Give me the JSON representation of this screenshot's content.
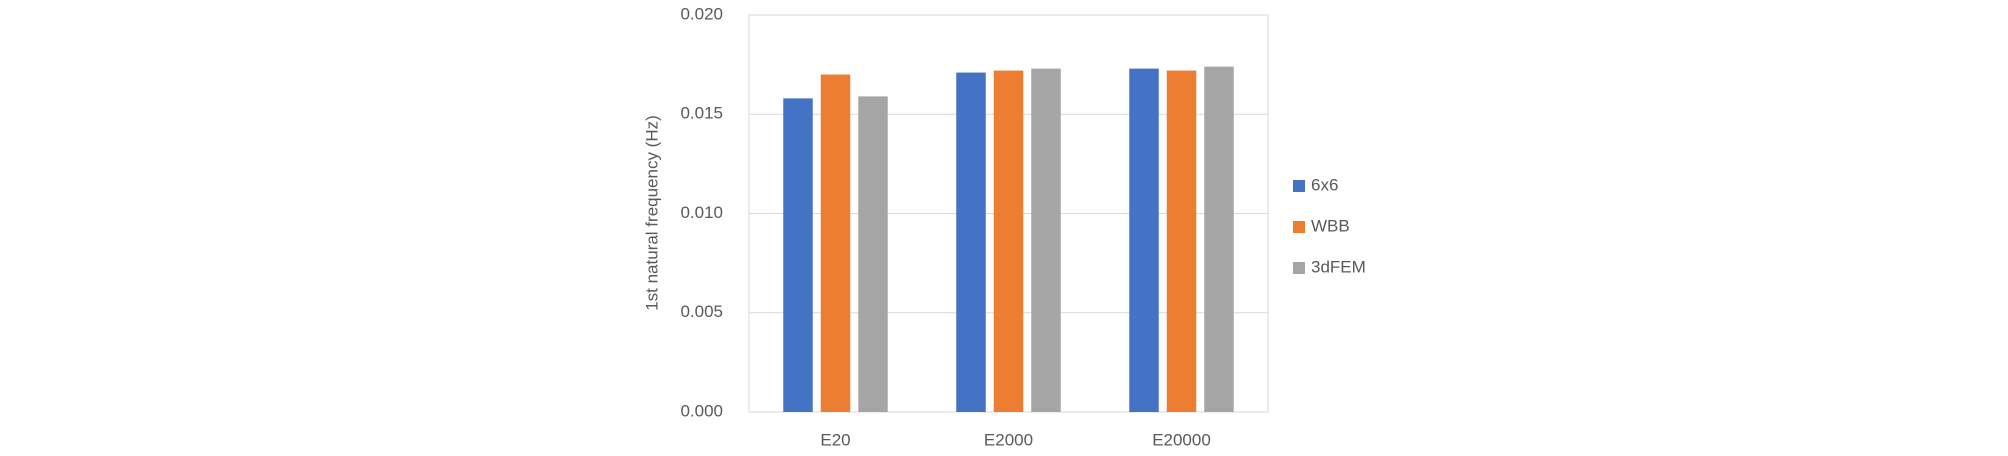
{
  "chart_data": {
    "type": "bar",
    "y_label": "1st natural frequency (Hz)",
    "categories": [
      "E20",
      "E2000",
      "E20000"
    ],
    "series": [
      {
        "name": "6x6",
        "color": "#4472c4",
        "values": [
          0.0158,
          0.0171,
          0.0173
        ]
      },
      {
        "name": "WBB",
        "color": "#ed7d31",
        "values": [
          0.017,
          0.0172,
          0.0172
        ]
      },
      {
        "name": "3dFEM",
        "color": "#a5a5a5",
        "values": [
          0.0159,
          0.0173,
          0.0174
        ]
      }
    ],
    "ylim": [
      0,
      0.02
    ],
    "yticks": [
      {
        "value": 0,
        "label": "0.000"
      },
      {
        "value": 0.005,
        "label": "0.005"
      },
      {
        "value": 0.01,
        "label": "0.010"
      },
      {
        "value": 0.015,
        "label": "0.015"
      },
      {
        "value": 0.02,
        "label": "0.020"
      }
    ],
    "grid": true,
    "legend": "right"
  }
}
